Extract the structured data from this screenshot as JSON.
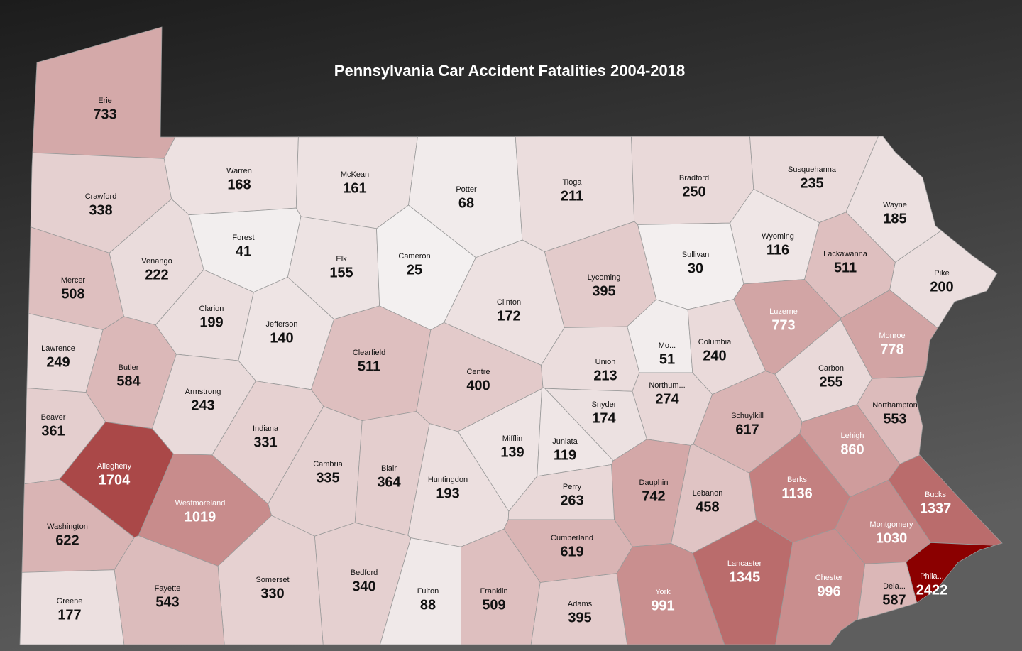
{
  "chart_data": {
    "type": "choropleth",
    "title": "Pennsylvania Car Accident Fatalities 2004-2018",
    "color_scale": [
      "#f4f2f2",
      "#8b0000"
    ],
    "regions": [
      {
        "name": "Erie",
        "value": 733
      },
      {
        "name": "Warren",
        "value": 168
      },
      {
        "name": "McKean",
        "value": 161
      },
      {
        "name": "Potter",
        "value": 68
      },
      {
        "name": "Tioga",
        "value": 211
      },
      {
        "name": "Bradford",
        "value": 250
      },
      {
        "name": "Susquehanna",
        "value": 235
      },
      {
        "name": "Wayne",
        "value": 185
      },
      {
        "name": "Crawford",
        "value": 338
      },
      {
        "name": "Forest",
        "value": 41
      },
      {
        "name": "Elk",
        "value": 155
      },
      {
        "name": "Cameron",
        "value": 25
      },
      {
        "name": "Venango",
        "value": 222
      },
      {
        "name": "Mercer",
        "value": 508
      },
      {
        "name": "Wyoming",
        "value": 116
      },
      {
        "name": "Sullivan",
        "value": 30
      },
      {
        "name": "Lackawanna",
        "value": 511
      },
      {
        "name": "Pike",
        "value": 200
      },
      {
        "name": "Lycoming",
        "value": 395
      },
      {
        "name": "Clinton",
        "value": 172
      },
      {
        "name": "Clarion",
        "value": 199
      },
      {
        "name": "Jefferson",
        "value": 140
      },
      {
        "name": "Luzerne",
        "value": 773
      },
      {
        "name": "Monroe",
        "value": 778
      },
      {
        "name": "Lawrence",
        "value": 249
      },
      {
        "name": "Clearfield",
        "value": 511
      },
      {
        "name": "Mo...",
        "value": 51
      },
      {
        "name": "Columbia",
        "value": 240
      },
      {
        "name": "Butler",
        "value": 584
      },
      {
        "name": "Centre",
        "value": 400
      },
      {
        "name": "Union",
        "value": 213
      },
      {
        "name": "Carbon",
        "value": 255
      },
      {
        "name": "Northum...",
        "value": 274
      },
      {
        "name": "Armstrong",
        "value": 243
      },
      {
        "name": "Northampton",
        "value": 553
      },
      {
        "name": "Snyder",
        "value": 174
      },
      {
        "name": "Schuylkill",
        "value": 617
      },
      {
        "name": "Beaver",
        "value": 361
      },
      {
        "name": "Indiana",
        "value": 331
      },
      {
        "name": "Lehigh",
        "value": 860
      },
      {
        "name": "Mifflin",
        "value": 139
      },
      {
        "name": "Juniata",
        "value": 119
      },
      {
        "name": "Cambria",
        "value": 335
      },
      {
        "name": "Allegheny",
        "value": 1704
      },
      {
        "name": "Blair",
        "value": 364
      },
      {
        "name": "Huntingdon",
        "value": 193
      },
      {
        "name": "Berks",
        "value": 1136
      },
      {
        "name": "Dauphin",
        "value": 742
      },
      {
        "name": "Perry",
        "value": 263
      },
      {
        "name": "Lebanon",
        "value": 458
      },
      {
        "name": "Bucks",
        "value": 1337
      },
      {
        "name": "Westmoreland",
        "value": 1019
      },
      {
        "name": "Washington",
        "value": 622
      },
      {
        "name": "Montgomery",
        "value": 1030
      },
      {
        "name": "Cumberland",
        "value": 619
      },
      {
        "name": "Lancaster",
        "value": 1345
      },
      {
        "name": "Bedford",
        "value": 340
      },
      {
        "name": "Chester",
        "value": 996
      },
      {
        "name": "Phila...",
        "value": 2422
      },
      {
        "name": "Somerset",
        "value": 330
      },
      {
        "name": "Dela...",
        "value": 587
      },
      {
        "name": "Fayette",
        "value": 543
      },
      {
        "name": "Fulton",
        "value": 88
      },
      {
        "name": "Franklin",
        "value": 509
      },
      {
        "name": "York",
        "value": 991
      },
      {
        "name": "Adams",
        "value": 395
      },
      {
        "name": "Greene",
        "value": 177
      }
    ]
  }
}
